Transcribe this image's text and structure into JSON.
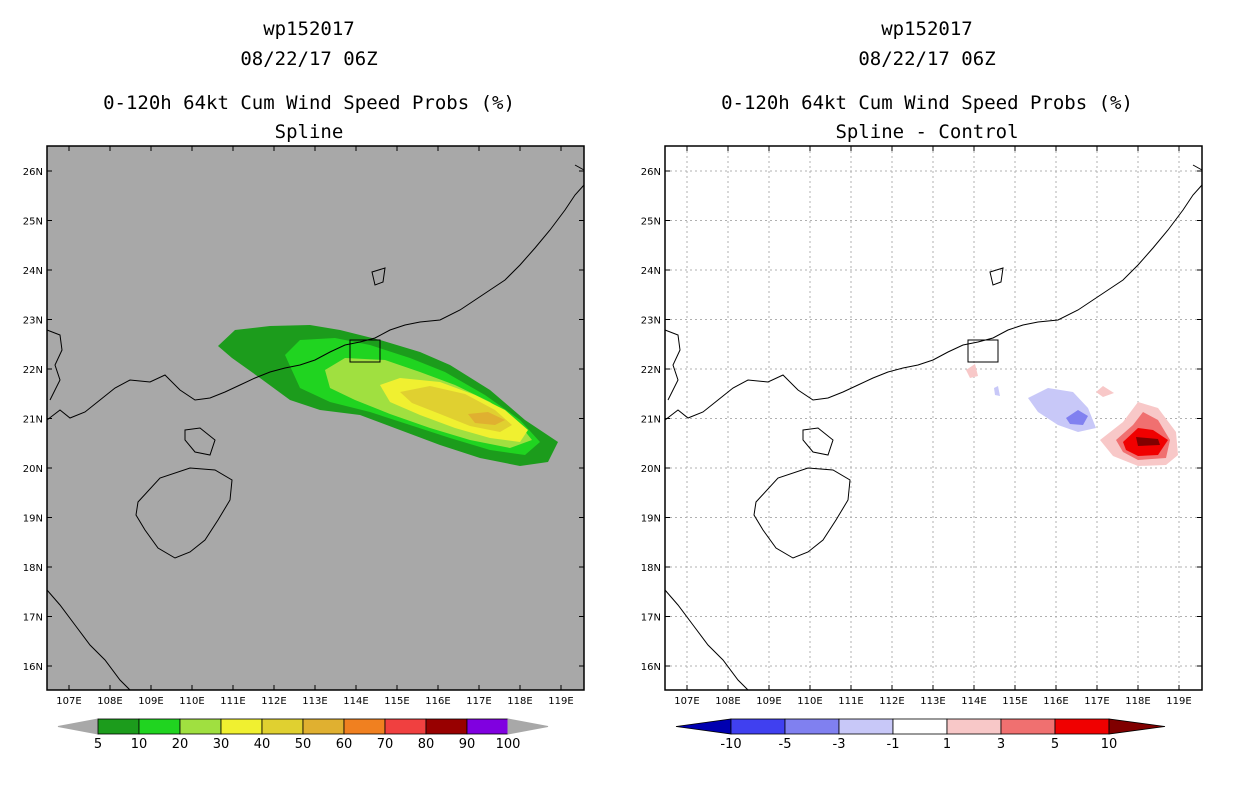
{
  "left": {
    "title_storm": "wp152017",
    "title_time": "08/22/17 06Z",
    "title_product": "0-120h 64kt Cum Wind Speed Probs (%)",
    "title_method": "Spline",
    "background_color": "#a8a8a8",
    "colorbar": {
      "labels": [
        "5",
        "10",
        "20",
        "30",
        "40",
        "50",
        "60",
        "70",
        "80",
        "90",
        "100"
      ],
      "colors": [
        "#1c9c1c",
        "#20d420",
        "#a0e040",
        "#f0f030",
        "#e0d030",
        "#e0b030",
        "#f08020",
        "#f04040",
        "#980000",
        "#8000e0"
      ]
    }
  },
  "right": {
    "title_storm": "wp152017",
    "title_time": "08/22/17 06Z",
    "title_product": "0-120h 64kt Cum Wind Speed Probs (%)",
    "title_method": "Spline - Control",
    "background_color": "#ffffff",
    "colorbar": {
      "labels": [
        "-10",
        "-5",
        "-3",
        "-1",
        "1",
        "3",
        "5",
        "10"
      ],
      "colors": [
        "#0000b0",
        "#4040f0",
        "#8080f0",
        "#c8c8f8",
        "#ffffff",
        "#f8c8c8",
        "#f07070",
        "#f00000",
        "#800000"
      ]
    }
  },
  "axes": {
    "lon_labels": [
      "107E",
      "108E",
      "109E",
      "110E",
      "111E",
      "112E",
      "113E",
      "114E",
      "115E",
      "116E",
      "117E",
      "118E",
      "119E"
    ],
    "lat_labels": [
      "26N",
      "25N",
      "24N",
      "23N",
      "22N",
      "21N",
      "20N",
      "19N",
      "18N",
      "17N",
      "16N"
    ]
  }
}
